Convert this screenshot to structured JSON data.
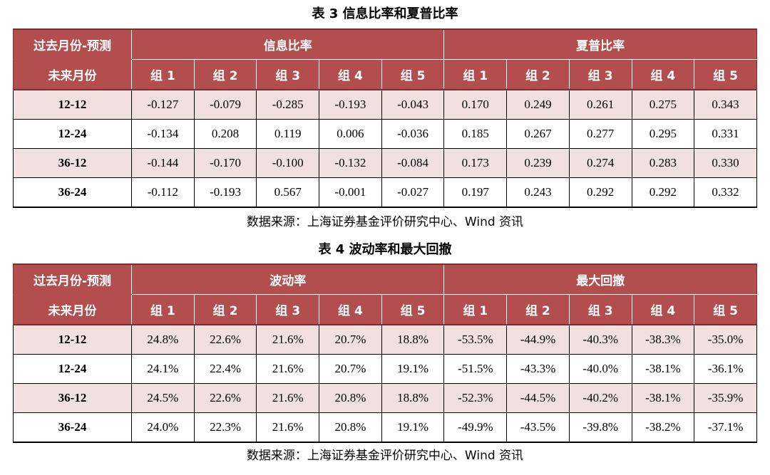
{
  "table3": {
    "caption": "表 3  信息比率和夏普比率",
    "corner_top": "过去月份-预测",
    "corner_bottom": "未来月份",
    "group_a": "信息比率",
    "group_b": "夏普比率",
    "subheaders": [
      "组 1",
      "组 2",
      "组 3",
      "组 4",
      "组 5",
      "组 1",
      "组 2",
      "组 3",
      "组 4",
      "组 5"
    ],
    "rows": [
      {
        "label": "12-12",
        "values": [
          "-0.127",
          "-0.079",
          "-0.285",
          "-0.193",
          "-0.043",
          "0.170",
          "0.249",
          "0.261",
          "0.275",
          "0.343"
        ]
      },
      {
        "label": "12-24",
        "values": [
          "-0.134",
          "0.208",
          "0.119",
          "0.006",
          "-0.036",
          "0.185",
          "0.267",
          "0.277",
          "0.295",
          "0.331"
        ]
      },
      {
        "label": "36-12",
        "values": [
          "-0.144",
          "-0.170",
          "-0.100",
          "-0.132",
          "-0.084",
          "0.173",
          "0.239",
          "0.274",
          "0.283",
          "0.330"
        ]
      },
      {
        "label": "36-24",
        "values": [
          "-0.112",
          "-0.193",
          "0.567",
          "-0.001",
          "-0.027",
          "0.197",
          "0.243",
          "0.292",
          "0.292",
          "0.332"
        ]
      }
    ],
    "source": "数据来源：上海证券基金评价研究中心、Wind 资讯"
  },
  "table4": {
    "caption": "表 4  波动率和最大回撤",
    "corner_top": "过去月份-预测",
    "corner_bottom": "未来月份",
    "group_a": "波动率",
    "group_b": "最大回撤",
    "subheaders": [
      "组 1",
      "组 2",
      "组 3",
      "组 4",
      "组 5",
      "组 1",
      "组 2",
      "组 3",
      "组 4",
      "组 5"
    ],
    "rows": [
      {
        "label": "12-12",
        "values": [
          "24.8%",
          "22.6%",
          "21.6%",
          "20.7%",
          "18.8%",
          "-53.5%",
          "-44.9%",
          "-40.3%",
          "-38.3%",
          "-35.0%"
        ]
      },
      {
        "label": "12-24",
        "values": [
          "24.1%",
          "22.4%",
          "21.6%",
          "20.7%",
          "19.1%",
          "-51.5%",
          "-43.3%",
          "-40.0%",
          "-38.1%",
          "-36.1%"
        ]
      },
      {
        "label": "36-12",
        "values": [
          "24.5%",
          "22.6%",
          "21.6%",
          "20.8%",
          "18.8%",
          "-52.3%",
          "-44.5%",
          "-40.2%",
          "-38.1%",
          "-35.9%"
        ]
      },
      {
        "label": "36-24",
        "values": [
          "24.0%",
          "22.3%",
          "21.6%",
          "20.8%",
          "19.1%",
          "-49.9%",
          "-43.5%",
          "-39.8%",
          "-38.2%",
          "-37.1%"
        ]
      }
    ],
    "source": "数据来源：上海证券基金评价研究中心、Wind 资讯"
  },
  "colors": {
    "header_bg": "#b34e4e",
    "header_text": "#ffffff",
    "shaded_row": "#f2e0e0"
  }
}
